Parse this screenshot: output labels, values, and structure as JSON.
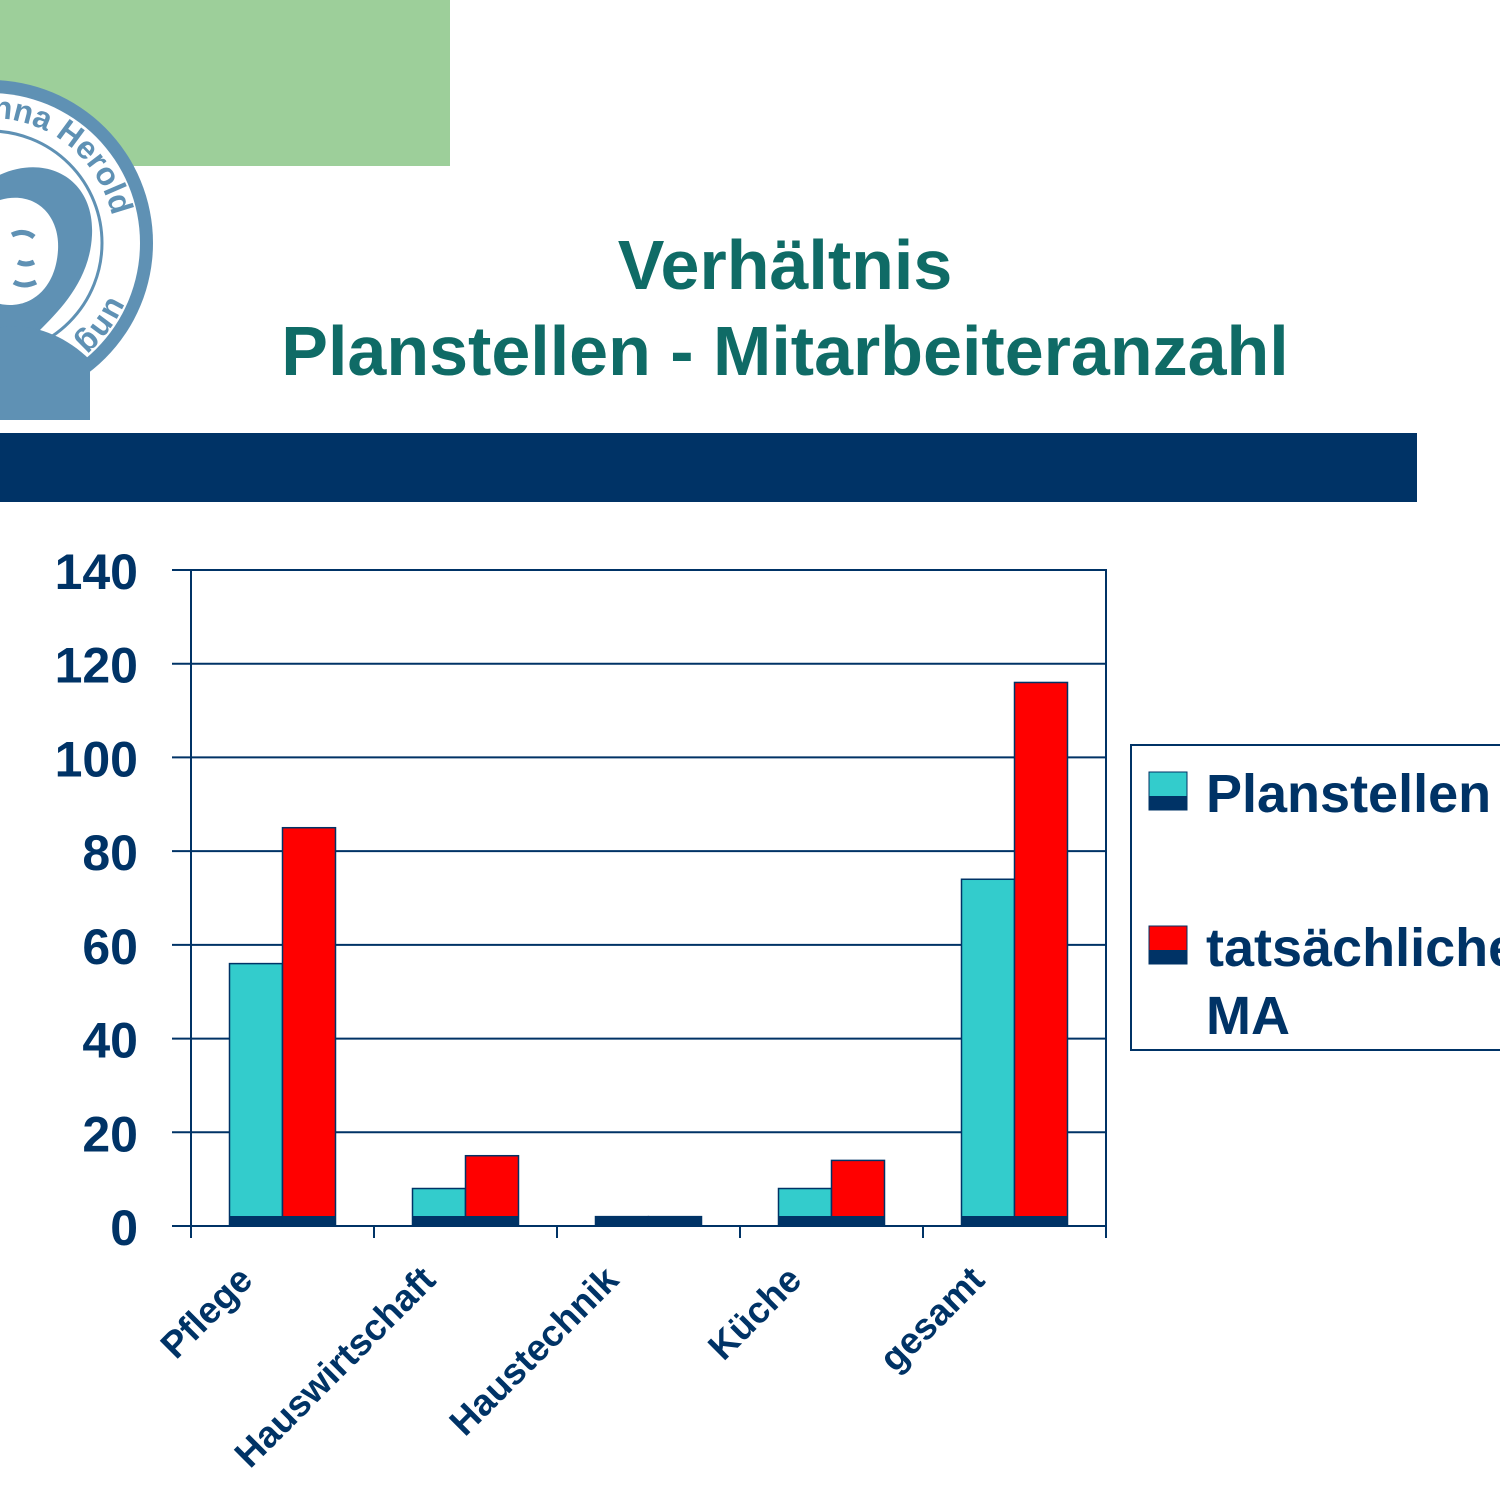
{
  "header": {
    "title_line1": "Verhältnis",
    "title_line2": "Planstellen - Mitarbeiteranzahl",
    "seal_text_top": "nna Herold",
    "seal_text_bottom": "ung Karlstadt",
    "green_block_color": "#9dcf9a",
    "band_color": "#003366",
    "title_color": "#0f6b66"
  },
  "chart_data": {
    "type": "bar",
    "categories": [
      "Pflege",
      "Hauswirtschaft",
      "Haustechnik",
      "Küche",
      "gesamt"
    ],
    "series": [
      {
        "name": "Planstellen",
        "values": [
          56,
          8,
          2,
          8,
          74
        ],
        "color": "#33cccc"
      },
      {
        "name": "tatsächliche MA",
        "values": [
          85,
          15,
          2,
          14,
          116
        ],
        "color": "#ff0000"
      }
    ],
    "ylim": [
      0,
      140
    ],
    "yticks": [
      0,
      20,
      40,
      60,
      80,
      100,
      120,
      140
    ],
    "grid": true,
    "legend_position": "right",
    "base_color": "#003366"
  }
}
